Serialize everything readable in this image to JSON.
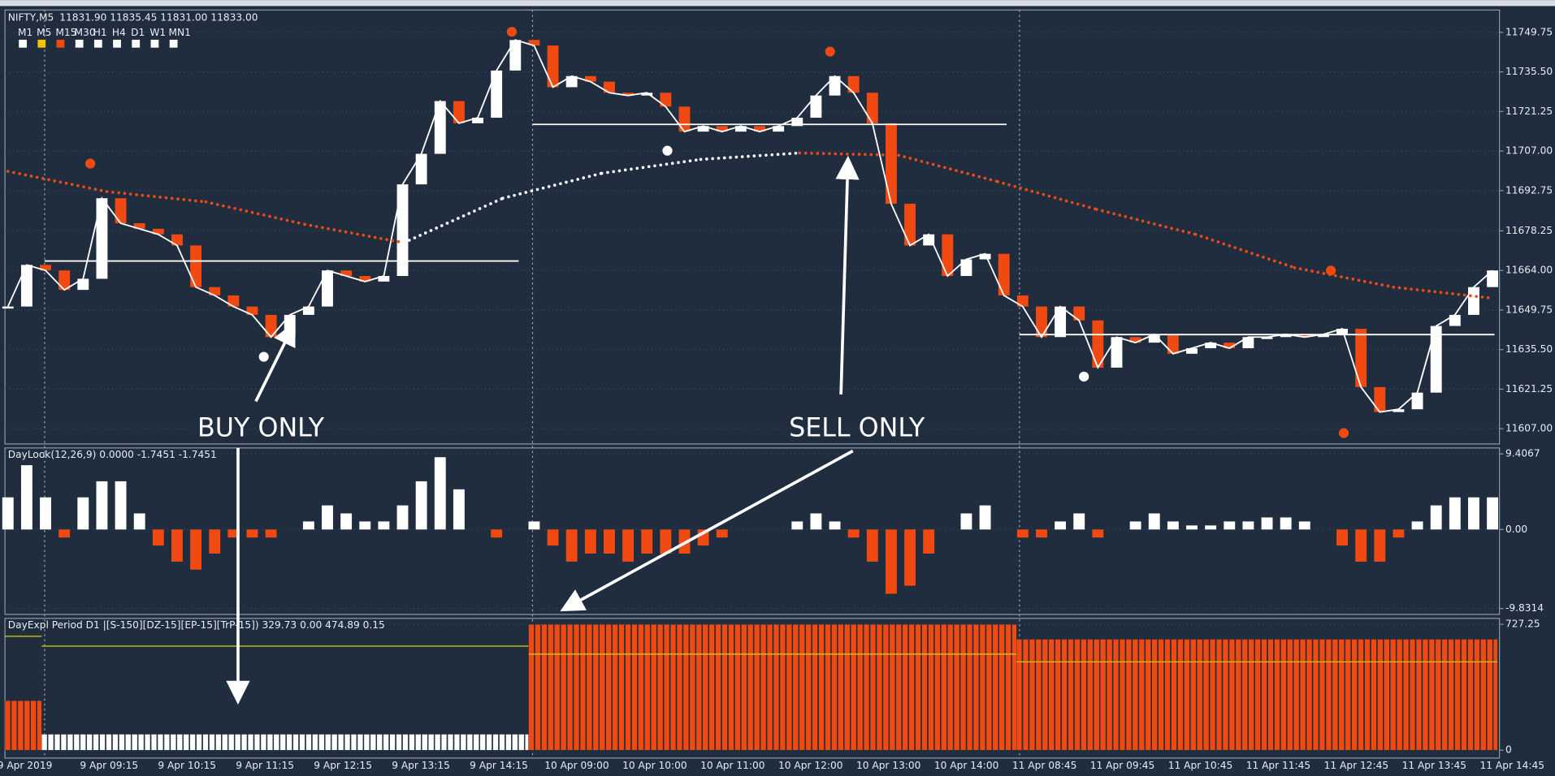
{
  "header": {
    "symbol": "NIFTY,M5",
    "ohlc": "11831.90 11835.45 11831.00 11833.00"
  },
  "timeframes": [
    "M1",
    "M5",
    "M15",
    "M30",
    "H1",
    "H4",
    "D1",
    "W1",
    "MN1"
  ],
  "active_timeframe": "M5",
  "price_pane": {
    "ylim": [
      11601.5,
      11757.8
    ],
    "yticks": [
      11749.75,
      {
        "value": 11735.5,
        "label": "11735.50"
      },
      11721.25,
      {
        "value": 11707,
        "label": "11707.00"
      },
      11692.75,
      11678.25,
      {
        "value": 11664,
        "label": "11664.00"
      },
      11649.75,
      {
        "value": 11635.5,
        "label": "11635.50"
      },
      11621.25,
      {
        "value": 11607,
        "label": "11607.00"
      }
    ],
    "closes": [
      11651,
      11666,
      11664,
      11657,
      11661,
      11690,
      11681,
      11679,
      11677,
      11673,
      11658,
      11655,
      11651,
      11648,
      11640,
      11648,
      11651,
      11664,
      11662,
      11660,
      11662,
      11695,
      11706,
      11725,
      11717,
      11719,
      11736,
      11747,
      11745,
      11730,
      11734,
      11732,
      11728,
      11727,
      11728,
      11723,
      11714,
      11716,
      11714,
      11716,
      11714,
      11716,
      11719,
      11727,
      11734,
      11728,
      11717,
      11688,
      11673,
      11677,
      11662,
      11668,
      11670,
      11655,
      11651,
      11640,
      11651,
      11646,
      11629,
      11640,
      11638,
      11641,
      11634,
      11636,
      11638,
      11636,
      11640,
      11640,
      11641,
      11640,
      11641,
      11643,
      11622,
      11613,
      11614,
      11620,
      11644,
      11648,
      11658,
      11664
    ],
    "ma": [
      11699.7,
      11692.4,
      11688.7,
      11680.6,
      11674,
      11690,
      11699,
      11704,
      11706.3,
      11705.5,
      11696,
      11686,
      11677,
      11665,
      11658,
      11654
    ],
    "levels": [
      11667.4,
      11716.6,
      11640.9
    ]
  },
  "annotations": {
    "buy": "BUY ONLY",
    "sell": "SELL ONLY"
  },
  "daylook": {
    "label": "DayLook(12,26,9) 0.0000 -1.7451 -1.7451",
    "ylim": [
      -10.57,
      10.15
    ],
    "yticks": [
      9.4067,
      {
        "value": 0,
        "label": "0.00"
      },
      -9.8314
    ],
    "values": [
      4,
      8,
      4,
      -1,
      4,
      6,
      6,
      2,
      -2,
      -4,
      -5,
      -3,
      -1,
      -1,
      -1,
      0,
      1,
      3,
      2,
      1,
      1,
      3,
      6,
      9,
      5,
      0,
      -1,
      0,
      1,
      -2,
      -4,
      -3,
      -3,
      -4,
      -3,
      -3,
      -3,
      -2,
      -1,
      0,
      0,
      0,
      1,
      2,
      1,
      -1,
      -4,
      -8,
      -7,
      -3,
      0,
      2,
      3,
      0,
      -1,
      -1,
      1,
      2,
      -1,
      0,
      1,
      2,
      1,
      0.5,
      0.5,
      1,
      1,
      1.5,
      1.5,
      1,
      0,
      -2,
      -4,
      -4,
      -1,
      1,
      3,
      4,
      4,
      4
    ]
  },
  "dayexplorer": {
    "label": "DayExpl  Period D1 |[S-150][DZ-15][EP-15][TrP-15]) 329.73 0.00 474.89 0.15",
    "ylim": [
      -45.8,
      761.6
    ],
    "yticks": [
      727.25,
      0
    ],
    "segments": [
      {
        "value": 286,
        "color": "#f04a12",
        "line": 658
      },
      {
        "value": 92,
        "color": "#ffffff",
        "line": 601
      },
      {
        "value": 727,
        "color": "#f04a12",
        "line": 555
      },
      {
        "value": 641,
        "color": "#f04a12",
        "line": 510
      }
    ]
  },
  "time_labels": [
    "9 Apr 2019",
    "9 Apr 09:15",
    "9 Apr 10:15",
    "9 Apr 11:15",
    "9 Apr 12:15",
    "9 Apr 13:15",
    "9 Apr 14:15",
    "10 Apr 09:00",
    "10 Apr 10:00",
    "10 Apr 11:00",
    "10 Apr 12:00",
    "10 Apr 13:00",
    "10 Apr 14:00",
    "11 Apr 08:45",
    "11 Apr 09:45",
    "11 Apr 10:45",
    "11 Apr 11:45",
    "11 Apr 12:45",
    "11 Apr 13:45",
    "11 Apr 14:45"
  ]
}
